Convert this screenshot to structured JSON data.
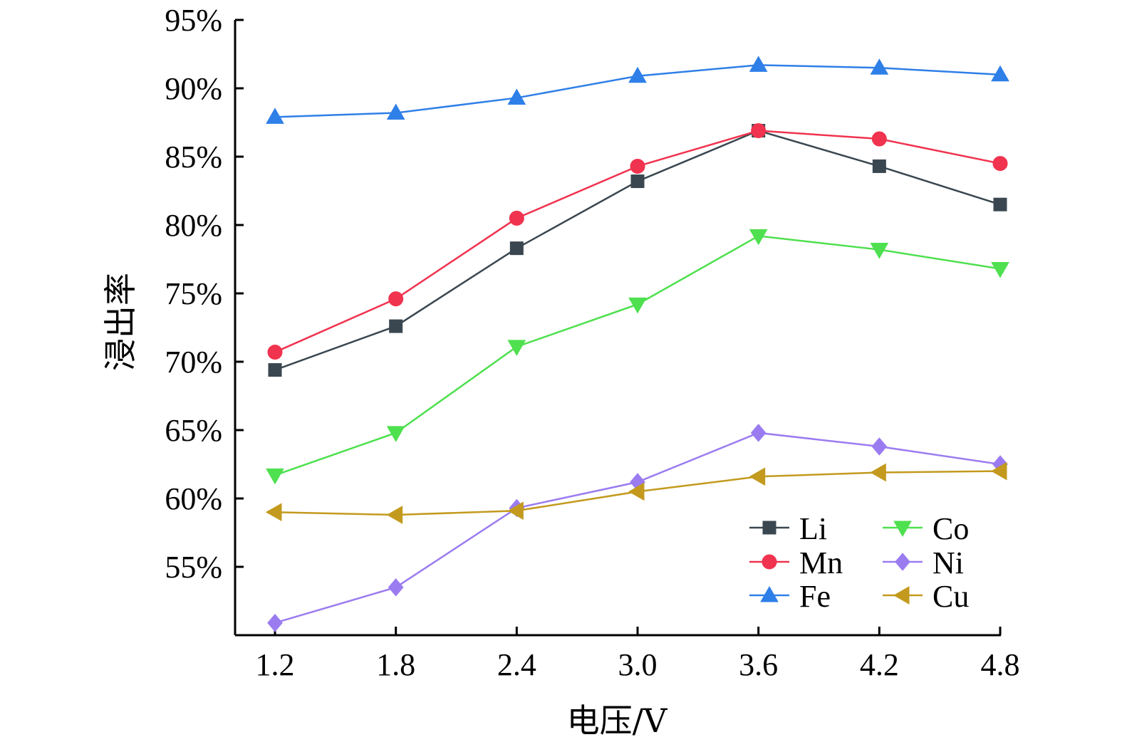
{
  "chart_data": {
    "type": "line",
    "title": "",
    "xlabel": "电压/V",
    "ylabel": "浸出率",
    "x": [
      1.2,
      1.8,
      2.4,
      3.0,
      3.6,
      4.2,
      4.8
    ],
    "x_tick_labels": [
      "1.2",
      "1.8",
      "2.4",
      "3.0",
      "3.6",
      "4.2",
      "4.8"
    ],
    "y_ticks": [
      55,
      60,
      65,
      70,
      75,
      80,
      85,
      90,
      95
    ],
    "y_tick_labels": [
      "55%",
      "60%",
      "65%",
      "70%",
      "75%",
      "80%",
      "85%",
      "90%",
      "95%"
    ],
    "ylim": [
      50,
      95
    ],
    "grid": false,
    "legend_position": "bottom-right",
    "series": [
      {
        "name": "Li",
        "color": "#3a4750",
        "marker": "square",
        "values": [
          69.4,
          72.6,
          78.3,
          83.2,
          86.9,
          84.3,
          81.5
        ]
      },
      {
        "name": "Mn",
        "color": "#f0334f",
        "marker": "circle",
        "values": [
          70.7,
          74.6,
          80.5,
          84.3,
          86.9,
          86.3,
          84.5
        ]
      },
      {
        "name": "Fe",
        "color": "#2f7fe8",
        "marker": "triangle-up",
        "values": [
          87.9,
          88.2,
          89.3,
          90.9,
          91.7,
          91.5,
          91.0
        ]
      },
      {
        "name": "Co",
        "color": "#4ee04e",
        "marker": "triangle-down",
        "values": [
          61.7,
          64.8,
          71.1,
          74.2,
          79.2,
          78.2,
          76.8
        ]
      },
      {
        "name": "Ni",
        "color": "#9b7cf0",
        "marker": "diamond",
        "values": [
          50.9,
          53.5,
          59.3,
          61.2,
          64.8,
          63.8,
          62.5
        ]
      },
      {
        "name": "Cu",
        "color": "#c39a1e",
        "marker": "triangle-left",
        "values": [
          59.0,
          58.8,
          59.1,
          60.5,
          61.6,
          61.9,
          62.0
        ]
      }
    ]
  }
}
